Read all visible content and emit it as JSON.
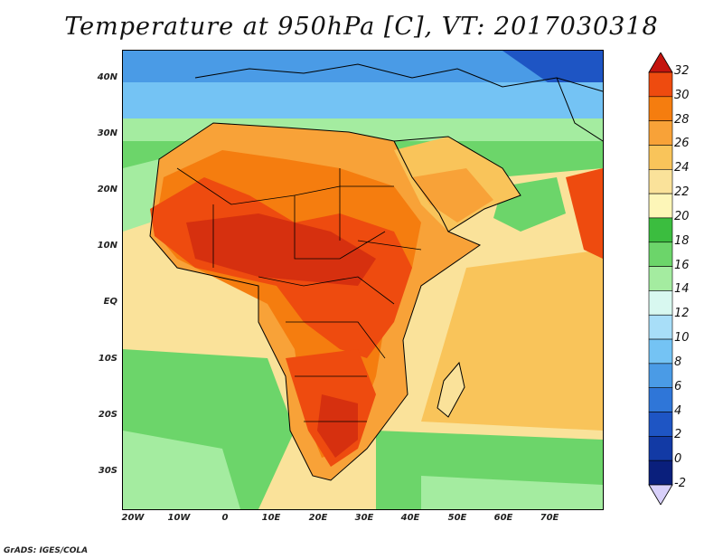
{
  "title": "Temperature at 950hPa [C], VT: 2017030318",
  "footer": "GrADS: IGES/COLA",
  "axes": {
    "lat_labels": [
      "40N",
      "30N",
      "20N",
      "10N",
      "EQ",
      "10S",
      "20S",
      "30S"
    ],
    "lon_labels": [
      "20W",
      "10W",
      "0",
      "10E",
      "20E",
      "30E",
      "40E",
      "50E",
      "60E",
      "70E"
    ]
  },
  "colorbar": {
    "levels": [
      "32",
      "30",
      "28",
      "26",
      "24",
      "22",
      "20",
      "18",
      "16",
      "14",
      "12",
      "10",
      "8",
      "6",
      "4",
      "2",
      "0",
      "-2"
    ],
    "colors": [
      "#d6300f",
      "#ee4b0f",
      "#f57d0f",
      "#f8a238",
      "#f9c45a",
      "#fae29a",
      "#fdf6b8",
      "#3bbd3f",
      "#6cd56a",
      "#a4eca0",
      "#d8f8f0",
      "#a8def8",
      "#74c3f4",
      "#4a9be6",
      "#2f76d8",
      "#1e55c4",
      "#123aa5",
      "#0a1f7c"
    ],
    "top_arrow_color": "#c4140e",
    "bottom_arrow_color": "#d8d0fa"
  }
}
